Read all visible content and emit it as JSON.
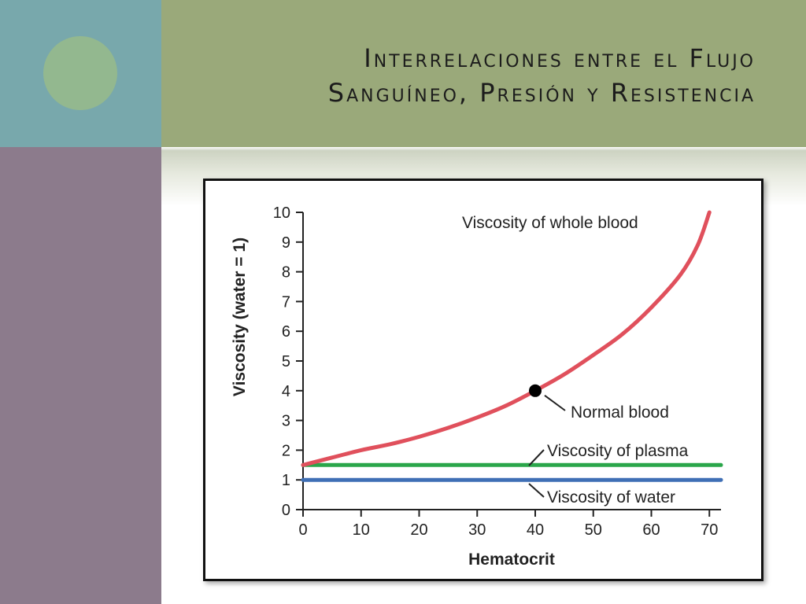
{
  "slide": {
    "title_line1": "Interrelaciones entre el Flujo",
    "title_line2": "Sanguíneo, Presión y Resistencia",
    "colors": {
      "teal": "#78a8ac",
      "circle": "#93b88f",
      "olive": "#9aa97a",
      "purple": "#8c7b8c"
    }
  },
  "chart_data": {
    "type": "line",
    "xlabel": "Hematocrit",
    "ylabel": "Viscosity (water = 1)",
    "xlim": [
      0,
      72
    ],
    "ylim": [
      0,
      10
    ],
    "xticks": [
      0,
      10,
      20,
      30,
      40,
      50,
      60,
      70
    ],
    "yticks": [
      0,
      1,
      2,
      3,
      4,
      5,
      6,
      7,
      8,
      9,
      10
    ],
    "series": [
      {
        "name": "Viscosity of whole blood",
        "color": "#e0505c",
        "x": [
          0,
          5,
          10,
          15,
          20,
          25,
          30,
          35,
          40,
          45,
          50,
          55,
          60,
          65,
          68,
          70
        ],
        "y": [
          1.5,
          1.75,
          2.0,
          2.2,
          2.45,
          2.75,
          3.1,
          3.5,
          4.0,
          4.55,
          5.2,
          5.9,
          6.8,
          7.9,
          8.9,
          10.0
        ]
      },
      {
        "name": "Viscosity of plasma",
        "color": "#2aa64a",
        "x": [
          0,
          72
        ],
        "y": [
          1.5,
          1.5
        ]
      },
      {
        "name": "Viscosity of water",
        "color": "#3f6fb5",
        "x": [
          0,
          72
        ],
        "y": [
          1.0,
          1.0
        ]
      }
    ],
    "highlight_point": {
      "label": "Normal blood",
      "x": 40,
      "y": 4.0
    },
    "annotations": {
      "whole_blood": "Viscosity of whole blood",
      "normal": "Normal blood",
      "plasma": "Viscosity of plasma",
      "water": "Viscosity of water"
    }
  }
}
